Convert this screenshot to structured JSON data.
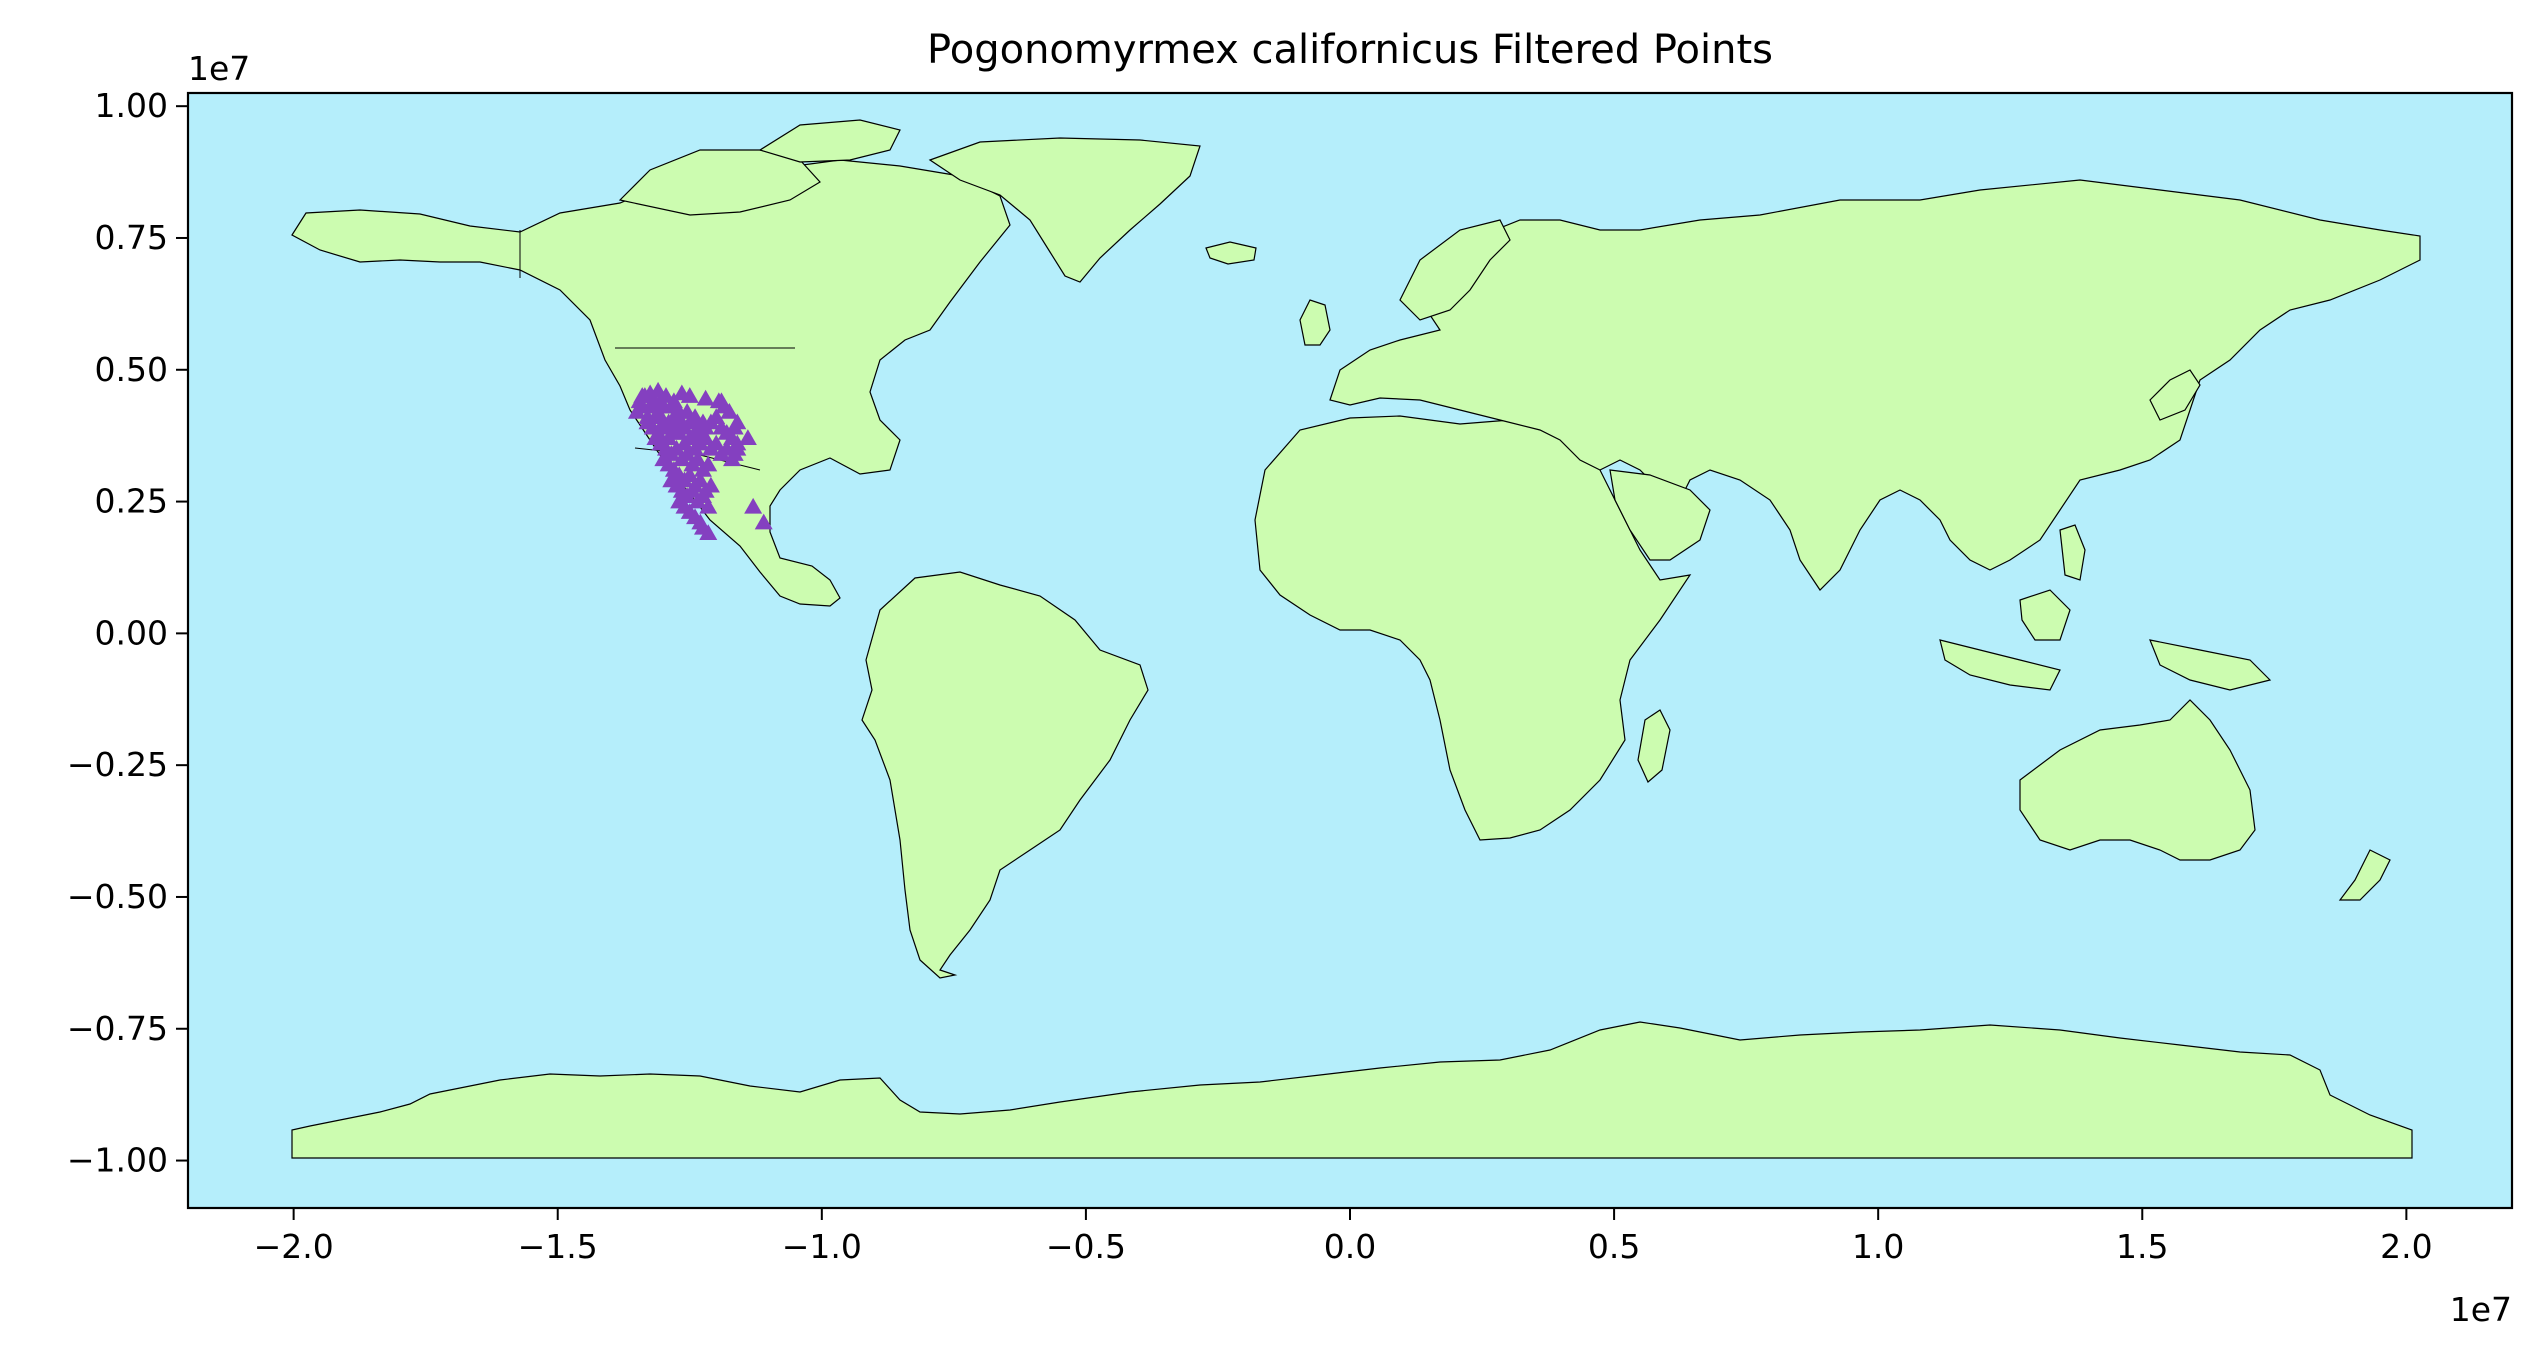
{
  "chart_data": {
    "type": "scatter",
    "title": "Pogonomyrmex californicus Filtered Points",
    "xlabel": "",
    "ylabel": "",
    "x_offset_label": "1e7",
    "y_offset_label": "1e7",
    "xlim": [
      -22000000,
      22000000
    ],
    "ylim": [
      -10900000,
      10250000
    ],
    "xticks": [
      -20000000,
      -15000000,
      -10000000,
      -5000000,
      0,
      5000000,
      10000000,
      15000000,
      20000000
    ],
    "xtick_labels": [
      "−2.0",
      "−1.5",
      "−1.0",
      "−0.5",
      "0.0",
      "0.5",
      "1.0",
      "1.5",
      "2.0"
    ],
    "yticks": [
      10000000,
      7500000,
      5000000,
      2500000,
      0,
      -2500000,
      -5000000,
      -7500000,
      -10000000
    ],
    "ytick_labels": [
      "1.00",
      "0.75",
      "0.50",
      "0.25",
      "0.00",
      "−0.25",
      "−0.50",
      "−0.75",
      "−1.00"
    ],
    "grid": false,
    "colors": {
      "ocean": "#b5eefb",
      "land": "#ccfcb0",
      "border": "#000000",
      "marker": "#8440c0"
    },
    "series": [
      {
        "marker": "triangle",
        "x": [
          -13500000,
          -13400000,
          -13300000,
          -13200000,
          -13100000,
          -13000000,
          -12900000,
          -12800000,
          -12700000,
          -12600000,
          -12500000,
          -12400000,
          -12300000,
          -12200000,
          -12100000,
          -12000000,
          -11900000,
          -11800000,
          -11700000,
          -11600000,
          -13450000,
          -13350000,
          -13250000,
          -13150000,
          -13050000,
          -12950000,
          -12850000,
          -12750000,
          -12650000,
          -12550000,
          -12450000,
          -12350000,
          -12250000,
          -11950000,
          -11850000,
          -11750000,
          -11650000,
          -13300000,
          -13200000,
          -13100000,
          -13000000,
          -12900000,
          -12800000,
          -12700000,
          -12600000,
          -12500000,
          -12400000,
          -12300000,
          -12200000,
          -12100000,
          -12000000,
          -11900000,
          -11800000,
          -11700000,
          -13150000,
          -13050000,
          -12950000,
          -12850000,
          -12750000,
          -12650000,
          -12550000,
          -12450000,
          -12350000,
          -12250000,
          -12150000,
          -11650000,
          -13000000,
          -12900000,
          -12800000,
          -12700000,
          -12600000,
          -12500000,
          -12400000,
          -12300000,
          -12200000,
          -12100000,
          -11600000,
          -12850000,
          -12750000,
          -12650000,
          -12550000,
          -12450000,
          -12350000,
          -12250000,
          -12150000,
          -12700000,
          -12600000,
          -12500000,
          -12400000,
          -12300000,
          -12250000,
          -12150000,
          -11300000,
          -11100000,
          -13400000,
          -13250000,
          -13100000,
          -12950000,
          -12800000,
          -12650000,
          -12500000,
          -12200000,
          -11900000,
          -11600000,
          -11400000
        ],
        "y": [
          4200000,
          4300000,
          4100000,
          4400000,
          4200000,
          4300000,
          4000000,
          4100000,
          4200000,
          3900000,
          4000000,
          4100000,
          3800000,
          3900000,
          4000000,
          4100000,
          3900000,
          3800000,
          3700000,
          3600000,
          4400000,
          4500000,
          4300000,
          4100000,
          4400000,
          3900000,
          4300000,
          3800000,
          4000000,
          4200000,
          3700000,
          3900000,
          4000000,
          4400000,
          4300000,
          4200000,
          3900000,
          4000000,
          3900000,
          3800000,
          4000000,
          3700000,
          3900000,
          3800000,
          3600000,
          3700000,
          3500000,
          3600000,
          3700000,
          3500000,
          3600000,
          3400000,
          3500000,
          3300000,
          3700000,
          3600000,
          3500000,
          3400000,
          3500000,
          3300000,
          3400000,
          3200000,
          3300000,
          3100000,
          3200000,
          3400000,
          3300000,
          3200000,
          3100000,
          3000000,
          2900000,
          3000000,
          2800000,
          2900000,
          2700000,
          2800000,
          3500000,
          2900000,
          2800000,
          2700000,
          2600000,
          2700000,
          2500000,
          2600000,
          2400000,
          2500000,
          2400000,
          2300000,
          2200000,
          2100000,
          2000000,
          1900000,
          2400000,
          2100000,
          4500000,
          4550000,
          4600000,
          4500000,
          4400000,
          4550000,
          4500000,
          4450000,
          4400000,
          4000000,
          3700000
        ]
      }
    ]
  }
}
